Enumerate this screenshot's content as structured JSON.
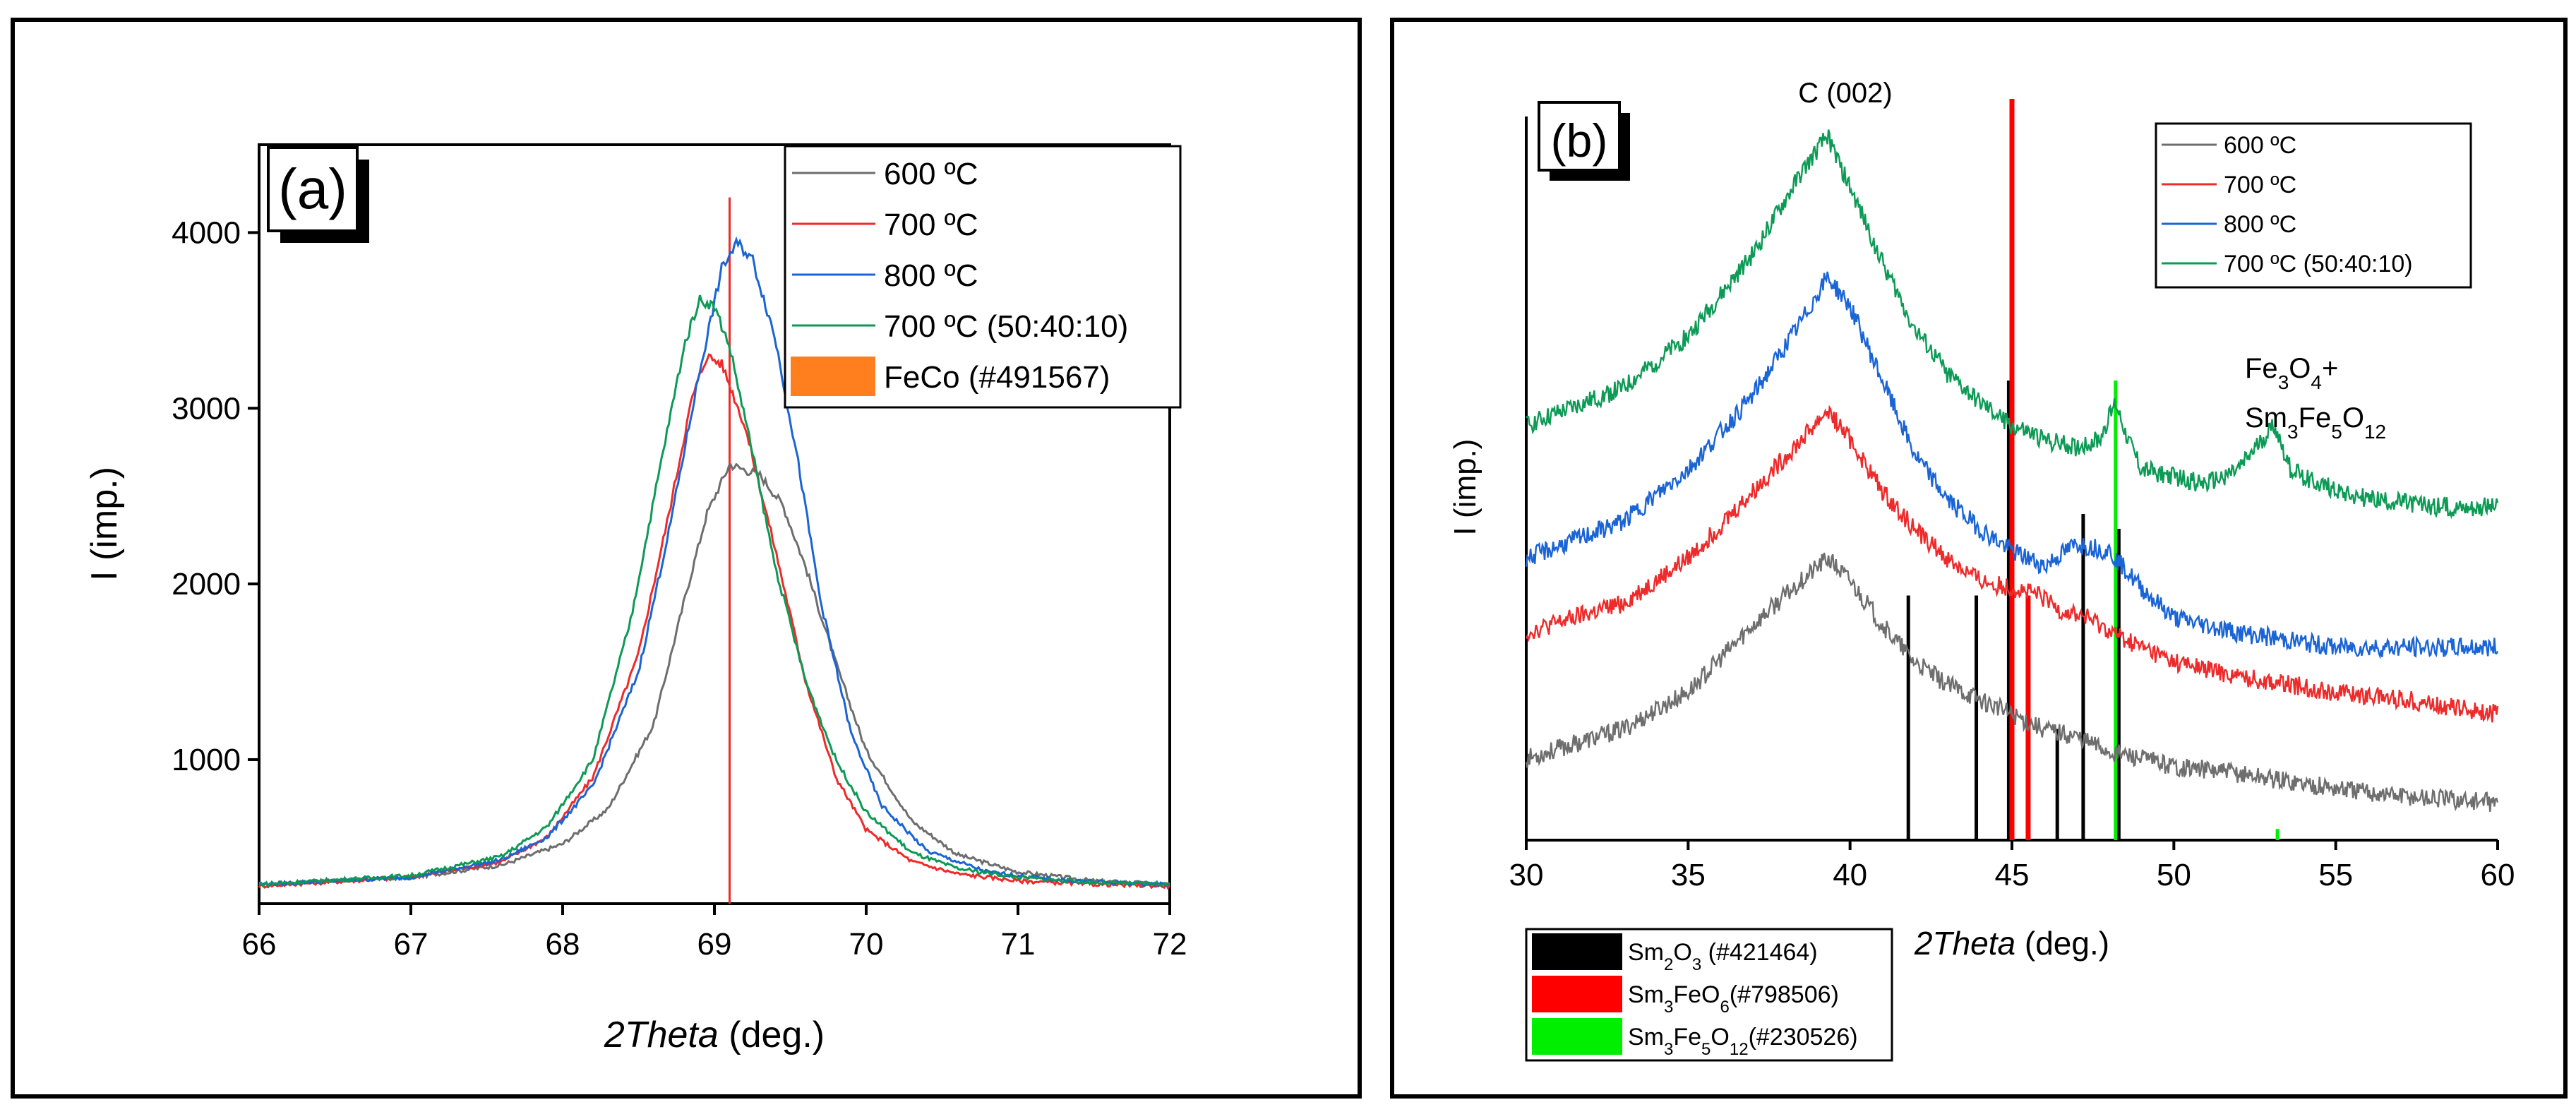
{
  "colors": {
    "s600": "#6e6e6e",
    "s700": "#ee2a2a",
    "s800": "#1a64d6",
    "s70050": "#0c9a55",
    "fecoRef": "#ff7f1e",
    "sm2o3Ref": "#000000",
    "sm3feo6Ref": "#ff0000",
    "sm3fe5o12Ref": "#00ee00"
  },
  "chart_data": [
    {
      "panel": "(a)",
      "type": "line",
      "title": "",
      "xlabel": "2Theta",
      "xlabel_unit": "(deg.)",
      "ylabel": "I (imp.)",
      "xlim": [
        66,
        72
      ],
      "ylim": [
        180,
        4500
      ],
      "x_ticks": [
        "66",
        "67",
        "68",
        "69",
        "70",
        "71",
        "72"
      ],
      "y_ticks": [
        "1000",
        "2000",
        "3000",
        "4000"
      ],
      "x_tick_values": [
        66,
        67,
        68,
        69,
        70,
        71,
        72
      ],
      "y_tick_values": [
        1000,
        2000,
        3000,
        4000
      ],
      "legend_position": "top-right",
      "series": [
        {
          "name": "600 ºC",
          "color_key": "s600",
          "x": [
            66,
            67,
            67.6,
            68,
            68.3,
            68.6,
            68.8,
            68.95,
            69.1,
            69.2,
            69.3,
            69.45,
            69.6,
            69.8,
            70,
            70.3,
            70.6,
            71,
            71.5,
            72
          ],
          "y": [
            290,
            330,
            400,
            520,
            720,
            1200,
            1900,
            2400,
            2680,
            2650,
            2620,
            2450,
            2100,
            1550,
            1050,
            650,
            460,
            360,
            310,
            290
          ]
        },
        {
          "name": "700 ºC",
          "color_key": "s700",
          "x": [
            66,
            67,
            67.6,
            67.9,
            68.2,
            68.5,
            68.7,
            68.85,
            68.95,
            69.05,
            69.2,
            69.4,
            69.6,
            69.8,
            70,
            70.3,
            70.6,
            71,
            71.5,
            72
          ],
          "y": [
            280,
            330,
            420,
            560,
            900,
            1600,
            2400,
            3050,
            3300,
            3250,
            2900,
            2200,
            1450,
            900,
            600,
            420,
            350,
            310,
            290,
            280
          ]
        },
        {
          "name": "800 ºC",
          "color_key": "s800",
          "x": [
            66,
            67,
            67.6,
            67.9,
            68.2,
            68.5,
            68.7,
            68.9,
            69.05,
            69.15,
            69.25,
            69.4,
            69.55,
            69.7,
            69.9,
            70.1,
            70.4,
            70.8,
            71.2,
            71.6,
            72
          ],
          "y": [
            290,
            330,
            430,
            560,
            850,
            1500,
            2300,
            3200,
            3800,
            3940,
            3850,
            3400,
            2700,
            1900,
            1150,
            740,
            480,
            360,
            320,
            300,
            290
          ]
        },
        {
          "name": "700 ºC (50:40:10)",
          "color_key": "s70050",
          "x": [
            66,
            67,
            67.6,
            67.9,
            68.2,
            68.45,
            68.65,
            68.8,
            68.9,
            69,
            69.1,
            69.25,
            69.4,
            69.6,
            69.8,
            70,
            70.3,
            70.6,
            71,
            71.5,
            72
          ],
          "y": [
            290,
            340,
            450,
            620,
            1000,
            1800,
            2700,
            3350,
            3620,
            3580,
            3350,
            2750,
            2100,
            1450,
            1000,
            700,
            470,
            380,
            330,
            300,
            290
          ]
        }
      ],
      "reference_lines": [
        {
          "name": "FeCo (#491567)",
          "color_key": "fecoRef",
          "x": [
            69.1
          ],
          "height": [
            4200
          ]
        }
      ]
    },
    {
      "panel": "(b)",
      "type": "line",
      "title": "",
      "xlabel": "2Theta",
      "xlabel_unit": "(deg.)",
      "ylabel": "I (imp.)",
      "xlim": [
        30,
        60
      ],
      "ylim": [
        0,
        100
      ],
      "x_ticks": [
        "30",
        "35",
        "40",
        "45",
        "50",
        "55",
        "60"
      ],
      "x_tick_values": [
        30,
        35,
        40,
        45,
        50,
        55,
        60
      ],
      "y_ticks": [],
      "legend_position": "top-right",
      "annotations": [
        {
          "text": "C (002)",
          "x": 39.3
        },
        {
          "text_parts": [
            "Fe",
            "3",
            "O",
            "4",
            "+"
          ]
        },
        {
          "text_parts": [
            "Sm",
            "3",
            "Fe",
            "5",
            "O",
            "12"
          ]
        }
      ],
      "series": [
        {
          "name": "600 ºC",
          "color_key": "s600",
          "x": [
            30,
            33,
            35,
            37,
            38.5,
            39.3,
            40,
            41,
            42,
            43,
            44,
            45,
            46,
            47,
            48,
            50,
            52,
            55,
            57,
            60
          ],
          "y": [
            11,
            15,
            20,
            29,
            35,
            38,
            35,
            29,
            24,
            21,
            19,
            17,
            15,
            14,
            12,
            10,
            9,
            7,
            6,
            5
          ]
        },
        {
          "name": "700 ºC",
          "color_key": "s700",
          "x": [
            30,
            33,
            35,
            37,
            38.5,
            39.3,
            40,
            41,
            42,
            43,
            44,
            45,
            45.8,
            46.5,
            47.3,
            48.5,
            50,
            52,
            55,
            57,
            60
          ],
          "y": [
            28,
            32,
            38,
            47,
            54,
            58,
            54,
            47,
            42,
            38,
            35,
            34,
            33,
            31,
            30,
            27,
            24,
            22,
            20,
            19,
            17
          ]
        },
        {
          "name": "800 ºC",
          "color_key": "s800",
          "x": [
            30,
            33,
            35,
            37,
            38.5,
            39.3,
            40,
            41,
            42,
            43,
            44,
            45,
            46,
            47,
            48,
            49,
            50,
            52,
            55,
            57,
            60
          ],
          "y": [
            38,
            43,
            50,
            60,
            70,
            76,
            72,
            62,
            52,
            46,
            42,
            39,
            37,
            40,
            39,
            34,
            30,
            28,
            26,
            26,
            26
          ]
        },
        {
          "name": "700 ºC (50:40:10)",
          "color_key": "s70050",
          "x": [
            30,
            33,
            35,
            37,
            38.5,
            39.3,
            40,
            41,
            42,
            43,
            44,
            45,
            46,
            47,
            47.7,
            48.2,
            48.6,
            49,
            50,
            51,
            52,
            53.1,
            53.6,
            54.5,
            56,
            58,
            60
          ],
          "y": [
            56,
            61,
            68,
            79,
            90,
            95,
            88,
            78,
            69,
            63,
            59,
            56,
            54,
            53,
            54,
            59,
            54,
            50,
            49,
            48,
            50,
            56,
            50,
            48,
            46,
            45,
            45
          ]
        }
      ],
      "reference_lines": [
        {
          "name": "Sm2O3 (#421464)",
          "color_key": "sm2o3Ref",
          "x": [
            41.8,
            43.9,
            44.9,
            46.4,
            47.2,
            48.3
          ],
          "height": [
            33,
            33,
            62,
            15,
            44,
            42
          ]
        },
        {
          "name": "Sm3FeO6(#798506)",
          "color_key": "sm3feo6Ref",
          "x": [
            45.0,
            45.5
          ],
          "height": [
            100,
            33
          ]
        },
        {
          "name": "Sm3Fe5O12(#230526)",
          "color_key": "sm3fe5o12Ref",
          "x": [
            48.2,
            53.2
          ],
          "height": [
            62,
            1.5
          ]
        }
      ],
      "reference_legend": [
        {
          "name_parts": [
            "Sm",
            "2",
            "O",
            "3",
            " (#421464)"
          ],
          "color_key": "sm2o3Ref"
        },
        {
          "name_parts": [
            "Sm",
            "3",
            "FeO",
            "6",
            "(#798506)"
          ],
          "color_key": "sm3feo6Ref"
        },
        {
          "name_parts": [
            "Sm",
            "3",
            "Fe",
            "5",
            "O",
            "12",
            "(#230526)"
          ],
          "color_key": "sm3fe5o12Ref"
        }
      ]
    }
  ]
}
